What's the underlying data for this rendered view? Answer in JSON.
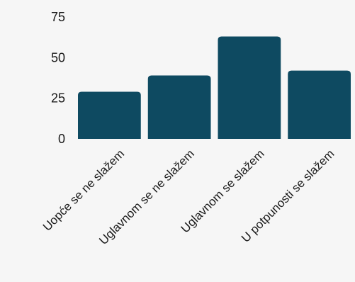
{
  "colors": {
    "bar": "#0e4a61",
    "background": "#f6f6f6",
    "text": "#1a1a1a"
  },
  "chart_data": {
    "type": "bar",
    "categories": [
      "Uopće se ne slažem",
      "Uglavnom se ne slažem",
      "Uglavnom se slažem",
      "U potpunosti se slažem"
    ],
    "values": [
      29,
      39,
      63,
      42
    ],
    "ylim": [
      0,
      75
    ],
    "yticks": [
      0,
      25,
      50,
      75
    ],
    "grid": false,
    "legend": "none"
  }
}
